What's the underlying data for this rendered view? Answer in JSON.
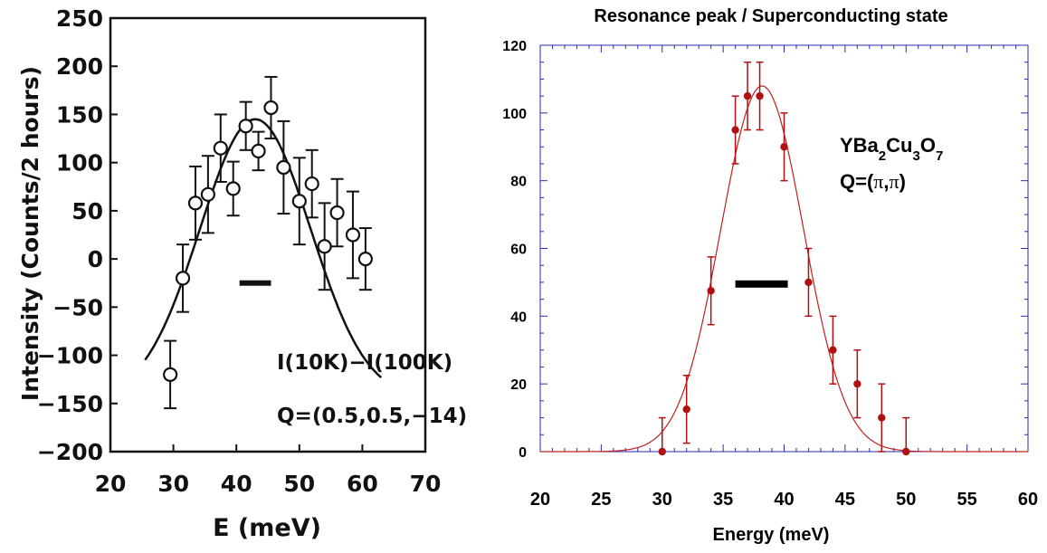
{
  "chart_data": [
    {
      "type": "scatter",
      "title": "",
      "xlabel": "E  (meV)",
      "ylabel": "Intensity  (Counts/2  hours)",
      "xlim": [
        20,
        70
      ],
      "ylim": [
        -200,
        250
      ],
      "x_ticks": [
        20,
        30,
        40,
        50,
        60,
        70
      ],
      "y_ticks": [
        250,
        200,
        150,
        100,
        50,
        0,
        -50,
        -100,
        -150,
        -200
      ],
      "grid": false,
      "legend": "none",
      "annotations": [
        "I(10K)−I(100K)",
        "Q=(0.5,0.5,−14)"
      ],
      "resolution_bar": {
        "x_from": 40.5,
        "x_to": 45.5,
        "y": -25
      },
      "series": [
        {
          "marker": "open-circle",
          "color": "#111111",
          "points": [
            {
              "x": 29.5,
              "y": -120,
              "err": 35
            },
            {
              "x": 31.5,
              "y": -20,
              "err": 35
            },
            {
              "x": 33.5,
              "y": 58,
              "err": 38
            },
            {
              "x": 35.5,
              "y": 67,
              "err": 40
            },
            {
              "x": 37.5,
              "y": 115,
              "err": 35
            },
            {
              "x": 39.5,
              "y": 73,
              "err": 28
            },
            {
              "x": 41.5,
              "y": 138,
              "err": 25
            },
            {
              "x": 43.5,
              "y": 112,
              "err": 20
            },
            {
              "x": 45.5,
              "y": 157,
              "err": 32
            },
            {
              "x": 47.5,
              "y": 95,
              "err": 48
            },
            {
              "x": 50.0,
              "y": 60,
              "err": 45
            },
            {
              "x": 52.0,
              "y": 78,
              "err": 35
            },
            {
              "x": 54.0,
              "y": 13,
              "err": 45
            },
            {
              "x": 56.0,
              "y": 48,
              "err": 35
            },
            {
              "x": 58.5,
              "y": 25,
              "err": 45
            },
            {
              "x": 60.5,
              "y": 0,
              "err": 32
            }
          ]
        },
        {
          "style": "fit-line",
          "color": "#111111",
          "gaussian": {
            "amplitude": 290,
            "center": 43,
            "sigma": 8.8,
            "offset": -145
          },
          "x_range": [
            25.5,
            63
          ]
        }
      ]
    },
    {
      "type": "scatter",
      "title": "Resonance peak / Superconducting state",
      "xlabel": "Energy  (meV)",
      "ylabel": "",
      "xlim": [
        20,
        60
      ],
      "ylim": [
        0,
        120
      ],
      "x_ticks": [
        20,
        25,
        30,
        35,
        40,
        45,
        50,
        55,
        60
      ],
      "y_ticks": [
        0,
        20,
        40,
        60,
        80,
        100,
        120
      ],
      "grid": false,
      "legend": "none",
      "annotations": {
        "formula": {
          "Y": "YBa",
          "s1": "2",
          "C": "Cu",
          "s2": "3",
          "O": "O",
          "s3": "7"
        },
        "q": {
          "prefix": "Q=(",
          "pi1": "π",
          "comma": ",",
          "pi2": "π",
          "suffix": ")"
        }
      },
      "resolution_bar": {
        "x_from": 36,
        "x_to": 40.3,
        "y": 49.5
      },
      "series": [
        {
          "marker": "filled-circle",
          "color": "#b01010",
          "points": [
            {
              "x": 30,
              "y": 0,
              "err": 10
            },
            {
              "x": 32,
              "y": 12.5,
              "err": 10
            },
            {
              "x": 34,
              "y": 47.5,
              "err": 10
            },
            {
              "x": 36,
              "y": 95,
              "err": 10
            },
            {
              "x": 37,
              "y": 105,
              "err": 10
            },
            {
              "x": 38,
              "y": 105,
              "err": 10
            },
            {
              "x": 40,
              "y": 90,
              "err": 10
            },
            {
              "x": 42,
              "y": 50,
              "err": 10
            },
            {
              "x": 44,
              "y": 30,
              "err": 10
            },
            {
              "x": 46,
              "y": 20,
              "err": 10
            },
            {
              "x": 48,
              "y": 10,
              "err": 10
            },
            {
              "x": 50,
              "y": 0,
              "err": 10
            }
          ]
        },
        {
          "style": "fit-line",
          "color": "#c02020",
          "gaussian": {
            "amplitude": 108,
            "center": 38.2,
            "sigma": 3.4,
            "offset": 0
          },
          "x_range": [
            20,
            60
          ]
        }
      ]
    }
  ]
}
